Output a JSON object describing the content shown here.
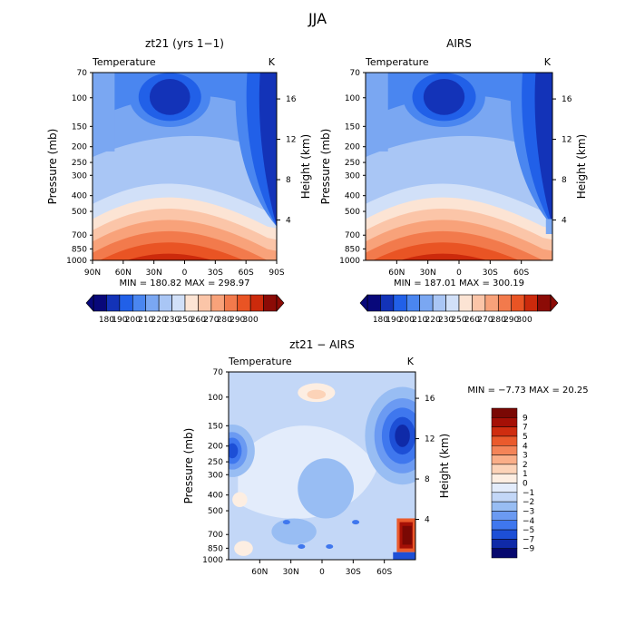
{
  "figure": {
    "title": "JJA"
  },
  "colors": {
    "temp_scale": [
      "#08087a",
      "#1333b8",
      "#2160e8",
      "#4a86f0",
      "#7aa7f2",
      "#a9c6f5",
      "#d1e0f8",
      "#fce4d4",
      "#fbc5a8",
      "#f8a27a",
      "#f27a4c",
      "#e95424",
      "#cc2a0c",
      "#8c0b06"
    ],
    "diff_scale": [
      "#06086e",
      "#0f2aa8",
      "#1d4fd6",
      "#3f77ee",
      "#6b9af2",
      "#98bdf3",
      "#c3d7f7",
      "#e3ecfb",
      "#fdeee2",
      "#fcd3b8",
      "#faae88",
      "#f48458",
      "#ea5a2c",
      "#cf2d10",
      "#a51006",
      "#7a0804"
    ]
  },
  "chart_data": [
    {
      "id": "model",
      "type": "heatmap",
      "title": "zt21 (yrs 1−1)",
      "field_label": "Temperature",
      "units": "K",
      "ylabel": "Pressure (mb)",
      "y2label": "Height (km)",
      "x_ticks": [
        "90N",
        "60N",
        "30N",
        "0",
        "30S",
        "60S",
        "90S"
      ],
      "y_ticks": [
        "70",
        "100",
        "150",
        "200",
        "250",
        "300",
        "400",
        "500",
        "700",
        "850",
        "1000"
      ],
      "y2_ticks": [
        "16",
        "12",
        "8",
        "4"
      ],
      "stats": "MIN = 180.82   MAX = 298.97",
      "min": 180.82,
      "max": 298.97,
      "colorbar_labels": [
        "180",
        "190",
        "200",
        "210",
        "220",
        "230",
        "250",
        "260",
        "270",
        "280",
        "290",
        "300"
      ]
    },
    {
      "id": "obs",
      "type": "heatmap",
      "title": "AIRS",
      "field_label": "Temperature",
      "units": "K",
      "ylabel": "Pressure (mb)",
      "y2label": "Height (km)",
      "x_ticks": [
        "60N",
        "30N",
        "0",
        "30S",
        "60S"
      ],
      "y_ticks": [
        "70",
        "100",
        "150",
        "200",
        "250",
        "300",
        "400",
        "500",
        "700",
        "850",
        "1000"
      ],
      "y2_ticks": [
        "16",
        "12",
        "8",
        "4"
      ],
      "stats": "MIN = 187.01   MAX = 300.19",
      "min": 187.01,
      "max": 300.19,
      "colorbar_labels": [
        "180",
        "190",
        "200",
        "210",
        "220",
        "230",
        "250",
        "260",
        "270",
        "280",
        "290",
        "300"
      ]
    },
    {
      "id": "diff",
      "type": "heatmap",
      "title": "zt21 − AIRS",
      "field_label": "Temperature",
      "units": "K",
      "ylabel": "Pressure (mb)",
      "y2label": "Height (km)",
      "x_ticks": [
        "60N",
        "30N",
        "0",
        "30S",
        "60S"
      ],
      "y_ticks": [
        "70",
        "100",
        "150",
        "200",
        "250",
        "300",
        "400",
        "500",
        "700",
        "850",
        "1000"
      ],
      "y2_ticks": [
        "16",
        "12",
        "8",
        "4"
      ],
      "stats": "MIN =   −7.73   MAX =   20.25",
      "min": -7.73,
      "max": 20.25,
      "colorbar_labels": [
        "9",
        "7",
        "5",
        "4",
        "3",
        "2",
        "1",
        "0",
        "−1",
        "−2",
        "−3",
        "−4",
        "−5",
        "−7",
        "−9"
      ]
    }
  ]
}
